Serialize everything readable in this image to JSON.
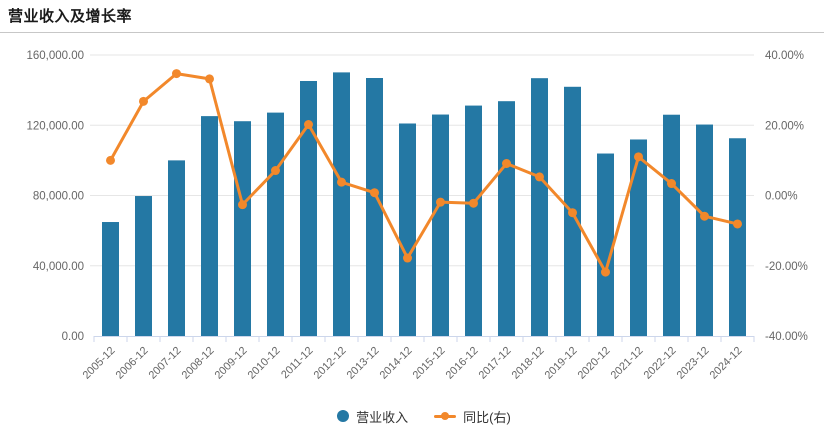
{
  "chart_data": {
    "type": "bar",
    "combo": "bar+line",
    "title": "营业收入及增长率",
    "categories": [
      "2005-12",
      "2006-12",
      "2007-12",
      "2008-12",
      "2009-12",
      "2010-12",
      "2011-12",
      "2012-12",
      "2013-12",
      "2014-12",
      "2015-12",
      "2016-12",
      "2017-12",
      "2018-12",
      "2019-12",
      "2020-12",
      "2021-12",
      "2022-12",
      "2023-12",
      "2024-12"
    ],
    "series": [
      {
        "name": "营业收入",
        "type": "bar",
        "axis": "left",
        "color": "#2478A4",
        "values": [
          64900,
          79700,
          100000,
          125200,
          122300,
          127200,
          145200,
          150100,
          146900,
          121000,
          126100,
          131200,
          133700,
          146800,
          141900,
          103900,
          111900,
          126000,
          120400,
          112600
        ]
      },
      {
        "name": "同比(右)",
        "type": "line",
        "axis": "right",
        "color": "#F2882B",
        "values": [
          10.0,
          26.8,
          34.7,
          33.2,
          -2.6,
          7.1,
          20.2,
          3.8,
          0.8,
          -17.8,
          -1.9,
          -2.2,
          9.1,
          5.3,
          -4.9,
          -21.8,
          11.0,
          3.4,
          -5.9,
          -8.1
        ]
      }
    ],
    "left_axis": {
      "min": 0,
      "max": 160000,
      "ticks": [
        "0.00",
        "40,000.00",
        "80,000.00",
        "120,000.00",
        "160,000.00"
      ]
    },
    "right_axis": {
      "min": -40,
      "max": 40,
      "ticks": [
        "-40.00%",
        "-20.00%",
        "0.00%",
        "20.00%",
        "40.00%"
      ]
    },
    "grid": "horizontal-on",
    "legend_position": "bottom-center",
    "style": {
      "grid_color": "#E6E6E6",
      "axis_line_color": "#CCD6EB",
      "tick_label_color": "#666666"
    }
  }
}
